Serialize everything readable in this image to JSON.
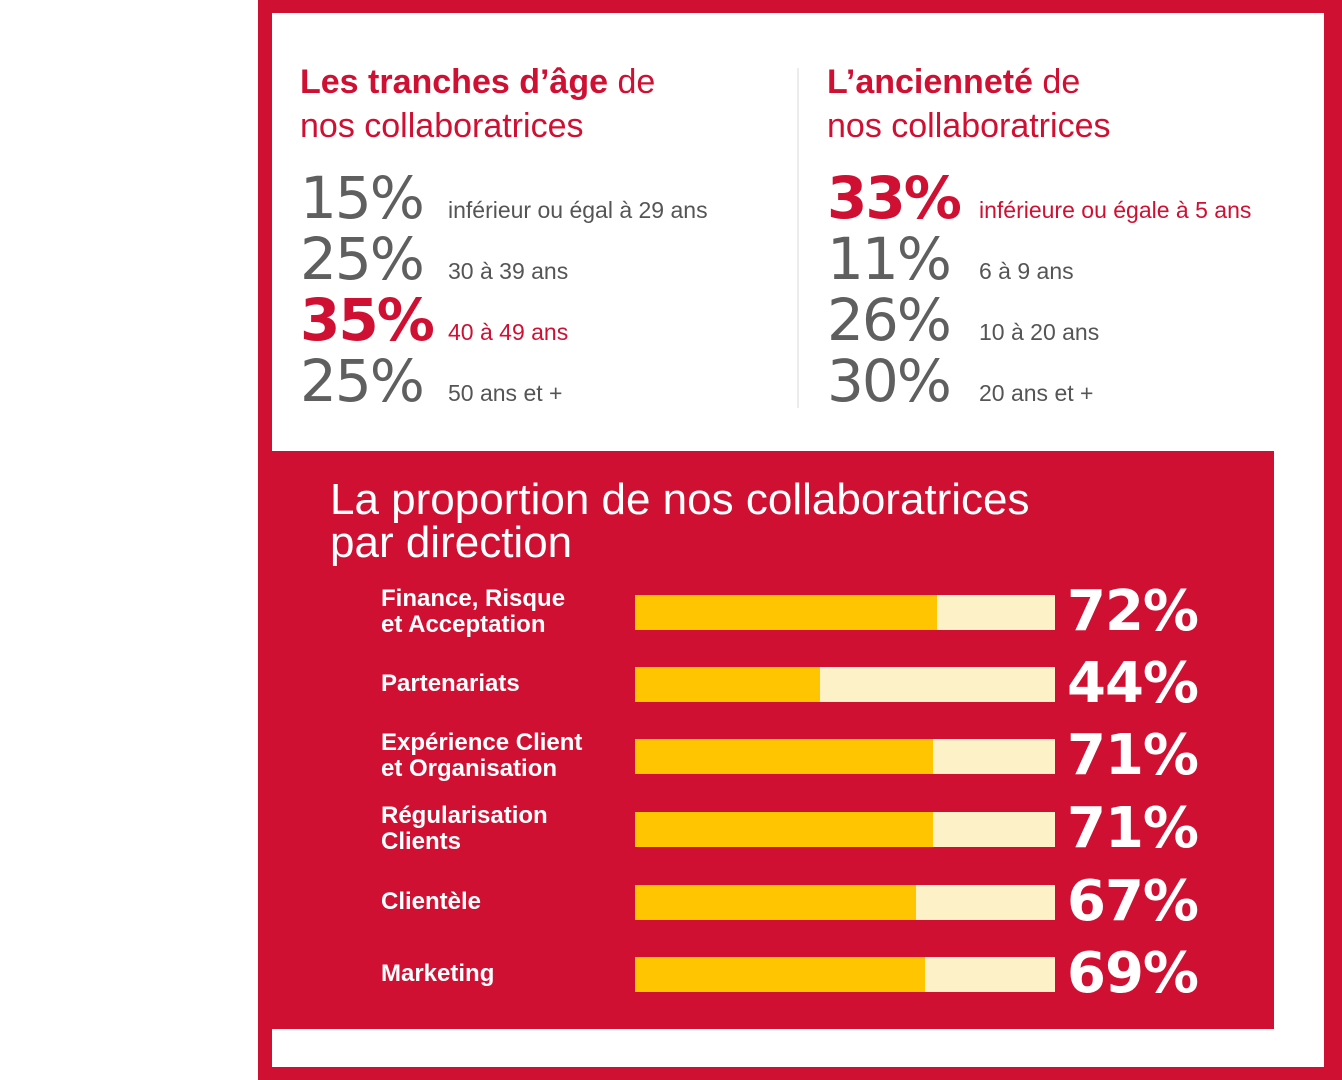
{
  "age": {
    "title_bold": "Les tranches d’âge",
    "title_rest_1": " de",
    "title_line2": "nos collaboratrices",
    "items": [
      {
        "pct": "15%",
        "label": "inférieur ou égal à 29 ans",
        "highlight": false
      },
      {
        "pct": "25%",
        "label": "30 à 39 ans",
        "highlight": false
      },
      {
        "pct": "35%",
        "label": "40 à 49 ans",
        "highlight": true
      },
      {
        "pct": "25%",
        "label": "50 ans et +",
        "highlight": false
      }
    ]
  },
  "seniority": {
    "title_bold": "L’ancienneté",
    "title_rest_1": " de",
    "title_line2": "nos collaboratrices",
    "items": [
      {
        "pct": "33%",
        "label": "inférieure ou égale à 5 ans",
        "highlight": true
      },
      {
        "pct": "11%",
        "label": "6 à 9 ans",
        "highlight": false
      },
      {
        "pct": "26%",
        "label": "10 à 20 ans",
        "highlight": false
      },
      {
        "pct": "30%",
        "label": "20 ans et +",
        "highlight": false
      }
    ]
  },
  "colors": {
    "brand_red": "#cf1033",
    "bar_fill": "#ffc600",
    "bar_track": "#fdf1c7",
    "stat_grey": "#5f5f5f"
  },
  "chart_data": {
    "type": "bar",
    "orientation": "horizontal",
    "title": "La proportion de nos collaboratrices par direction",
    "title_line1": "La proportion de nos collaboratrices",
    "title_line2": "par direction",
    "categories": [
      [
        "Finance, Risque",
        "et Acceptation"
      ],
      [
        "Partenariats"
      ],
      [
        "Expérience Client",
        "et Organisation"
      ],
      [
        "Régularisation",
        "Clients"
      ],
      [
        "Clientèle"
      ],
      [
        "Marketing"
      ]
    ],
    "values": [
      72,
      44,
      71,
      71,
      67,
      69
    ],
    "value_labels": [
      "72%",
      "44%",
      "71%",
      "71%",
      "67%",
      "69%"
    ],
    "xlim": [
      0,
      100
    ],
    "grid": false,
    "legend": "none"
  }
}
